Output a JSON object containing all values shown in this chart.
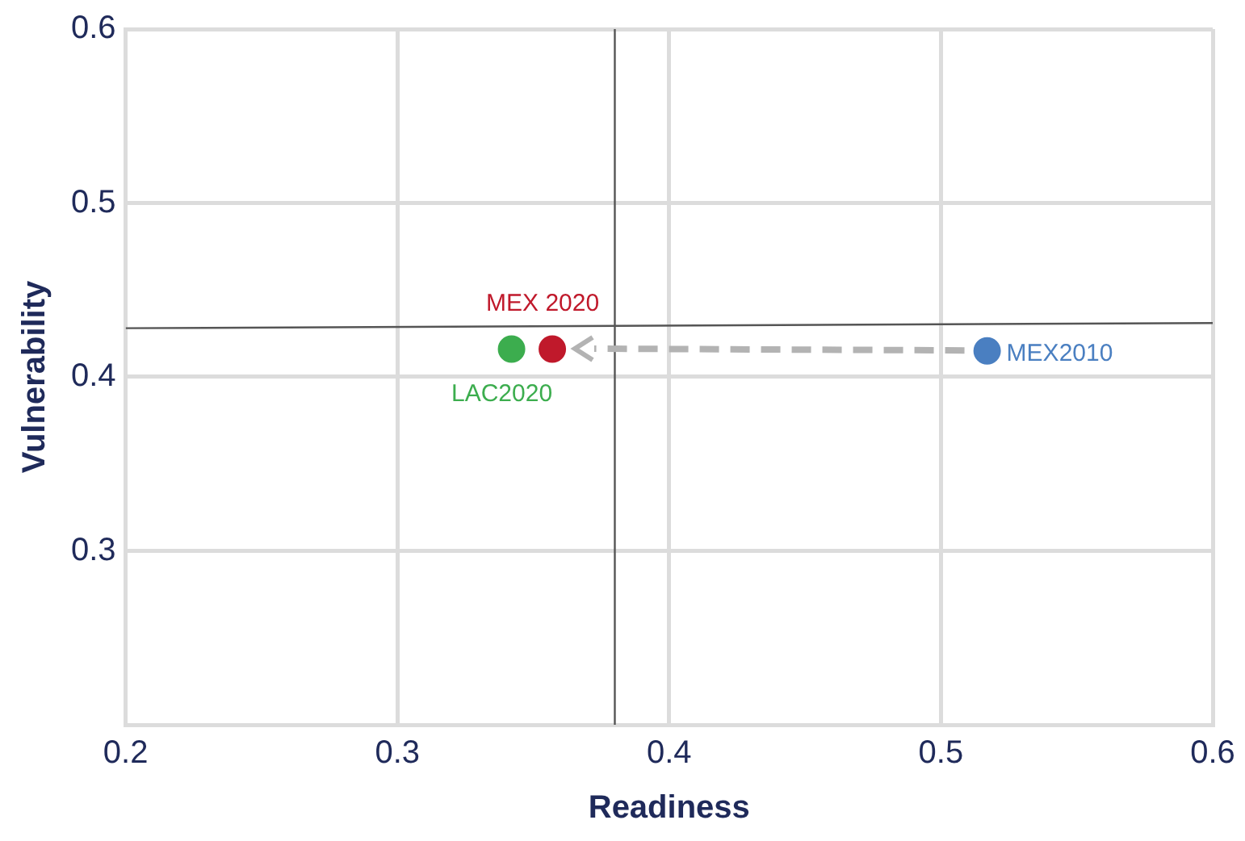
{
  "chart_data": {
    "type": "scatter",
    "xlabel": "Readiness",
    "ylabel": "Vulnerability",
    "xlim": [
      0.2,
      0.6
    ],
    "xticks": [
      0.2,
      0.3,
      0.4,
      0.5,
      0.6
    ],
    "ylim": [
      0.2,
      0.6
    ],
    "yticks": [
      {
        "value": 0.2,
        "label": null
      },
      0.3,
      0.4,
      0.5,
      0.6
    ],
    "grid": true,
    "legend": false,
    "marker": "circle",
    "ref_lines": [
      {
        "axis": "x",
        "value": 0.38,
        "color": "#555555"
      }
    ],
    "series": [
      {
        "name": "LAC2020",
        "color": "#3cad4e",
        "x": [
          0.342
        ],
        "values": [
          0.416
        ]
      },
      {
        "name": "MEX 2020",
        "color": "#c0192b",
        "x": [
          0.357
        ],
        "values": [
          0.416
        ]
      },
      {
        "name": "MEX2010",
        "color": "#4a7fc1",
        "x": [
          0.517
        ],
        "values": [
          0.415
        ]
      },
      {
        "type": "line",
        "color": "#555555",
        "x": [
          0.2,
          0.6
        ],
        "values": [
          0.428,
          0.431
        ],
        "marker": "none"
      }
    ]
  }
}
